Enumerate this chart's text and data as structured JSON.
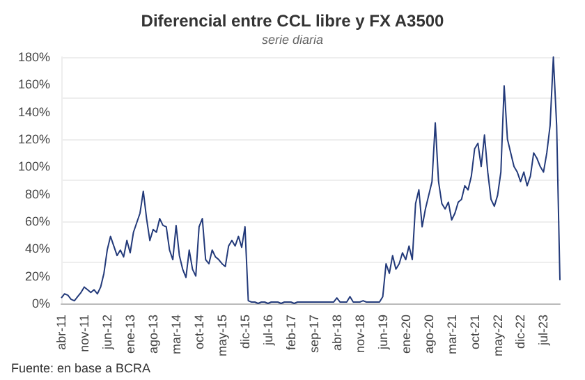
{
  "chart_data": {
    "type": "line",
    "title": "Diferencial entre CCL libre y FX A3500",
    "subtitle": "serie diaria",
    "annotations": [
      "Fuente: en base a BCRA"
    ],
    "categories": [
      "abr-11",
      null,
      null,
      null,
      null,
      null,
      null,
      "nov-11",
      null,
      null,
      null,
      null,
      null,
      null,
      "jun-12",
      null,
      null,
      null,
      null,
      null,
      null,
      "ene-13",
      null,
      null,
      null,
      null,
      null,
      null,
      "ago-13",
      null,
      null,
      null,
      null,
      null,
      null,
      "mar-14",
      null,
      null,
      null,
      null,
      null,
      null,
      "oct-14",
      null,
      null,
      null,
      null,
      null,
      null,
      "may-15",
      null,
      null,
      null,
      null,
      null,
      null,
      "dic-15",
      null,
      null,
      null,
      null,
      null,
      null,
      "jul-16",
      null,
      null,
      null,
      null,
      null,
      null,
      "feb-17",
      null,
      null,
      null,
      null,
      null,
      null,
      "sep-17",
      null,
      null,
      null,
      null,
      null,
      null,
      "abr-18",
      null,
      null,
      null,
      null,
      null,
      null,
      "nov-18",
      null,
      null,
      null,
      null,
      null,
      null,
      "jun-19",
      null,
      null,
      null,
      null,
      null,
      null,
      "ene-20",
      null,
      null,
      null,
      null,
      null,
      null,
      "ago-20",
      null,
      null,
      null,
      null,
      null,
      null,
      "mar-21",
      null,
      null,
      null,
      null,
      null,
      null,
      "oct-21",
      null,
      null,
      null,
      null,
      null,
      null,
      "may-22",
      null,
      null,
      null,
      null,
      null,
      null,
      "dic-22",
      null,
      null,
      null,
      null,
      null,
      null,
      "jul-23",
      null,
      null,
      null,
      null,
      null
    ],
    "series": [
      {
        "color": "#233a7a",
        "values": [
          4,
          7,
          6,
          3,
          2,
          5,
          8,
          12,
          10,
          8,
          10,
          7,
          12,
          22,
          39,
          49,
          42,
          35,
          39,
          34,
          46,
          37,
          52,
          59,
          66,
          82,
          62,
          46,
          54,
          52,
          62,
          57,
          56,
          39,
          32,
          57,
          35,
          25,
          19,
          39,
          25,
          20,
          56,
          62,
          32,
          29,
          39,
          34,
          32,
          29,
          27,
          42,
          46,
          42,
          49,
          41,
          56,
          2,
          1,
          1,
          0,
          1,
          1,
          0,
          1,
          1,
          1,
          0,
          1,
          1,
          1,
          0,
          1,
          1,
          1,
          1,
          1,
          1,
          1,
          1,
          1,
          1,
          1,
          1,
          4,
          1,
          1,
          1,
          5,
          1,
          1,
          1,
          2,
          1,
          1,
          1,
          1,
          1,
          5,
          29,
          22,
          35,
          25,
          29,
          37,
          32,
          42,
          32,
          73,
          83,
          56,
          69,
          79,
          89,
          132,
          89,
          73,
          69,
          74,
          61,
          66,
          74,
          76,
          86,
          83,
          93,
          113,
          117,
          100,
          123,
          96,
          76,
          71,
          79,
          96,
          159,
          120,
          110,
          100,
          96,
          89,
          96,
          86,
          93,
          110,
          106,
          100,
          96,
          110,
          130,
          180,
          130,
          17
        ]
      }
    ],
    "ylim": [
      0,
      180
    ],
    "yticks": [
      {
        "value": 0,
        "label": "0%"
      },
      {
        "value": 20,
        "label": "20%"
      },
      {
        "value": 40,
        "label": "40%"
      },
      {
        "value": 60,
        "label": "60%"
      },
      {
        "value": 80,
        "label": "80%"
      },
      {
        "value": 100,
        "label": "100%"
      },
      {
        "value": 120,
        "label": "120%"
      },
      {
        "value": 140,
        "label": "140%"
      },
      {
        "value": 160,
        "label": "160%"
      },
      {
        "value": 180,
        "label": "180%"
      }
    ],
    "grid": "y"
  }
}
